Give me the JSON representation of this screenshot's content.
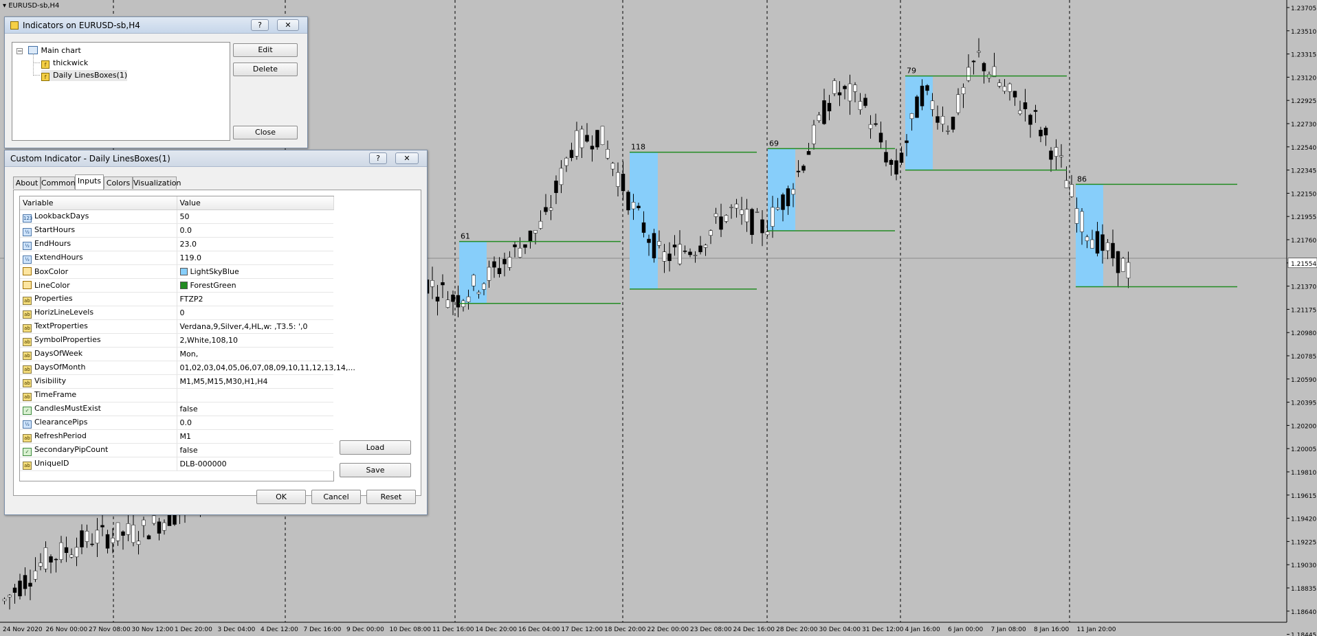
{
  "chart": {
    "title": "EURUSD-sb,H4",
    "price_ticks": [
      "1.23705",
      "1.23510",
      "1.23315",
      "1.23120",
      "1.22925",
      "1.22730",
      "1.22540",
      "1.22345",
      "1.22150",
      "1.21955",
      "1.21760",
      "1.21554",
      "1.21370",
      "1.21175",
      "1.20980",
      "1.20785",
      "1.20590",
      "1.20395",
      "1.20200",
      "1.20005",
      "1.19810",
      "1.19615",
      "1.19420",
      "1.19225",
      "1.19030",
      "1.18835",
      "1.18640",
      "1.18445"
    ],
    "current_price": "1.21554",
    "time_ticks": [
      "24 Nov 2020",
      "26 Nov 00:00",
      "27 Nov 08:00",
      "30 Nov 12:00",
      "1 Dec 20:00",
      "3 Dec 04:00",
      "4 Dec 12:00",
      "7 Dec 16:00",
      "9 Dec 00:00",
      "10 Dec 08:00",
      "11 Dec 16:00",
      "14 Dec 20:00",
      "16 Dec 04:00",
      "17 Dec 12:00",
      "18 Dec 20:00",
      "22 Dec 00:00",
      "23 Dec 08:00",
      "24 Dec 16:00",
      "28 Dec 20:00",
      "30 Dec 04:00",
      "31 Dec 12:00",
      "4 Jan 16:00",
      "6 Jan 00:00",
      "7 Jan 08:00",
      "8 Jan 16:00",
      "11 Jan 20:00"
    ],
    "box_labels": [
      "61",
      "118",
      "69",
      "79",
      "86"
    ],
    "colors": {
      "box": "#87CEFA",
      "line": "#228B22",
      "background": "#c0c0c0",
      "grid": "#000000"
    }
  },
  "indicators_window": {
    "title": "Indicators on EURUSD-sb,H4",
    "help_glyph": "?",
    "close_glyph": "✕",
    "tree": {
      "root": "Main chart",
      "children": [
        "thickwick",
        "Daily LinesBoxes(1)"
      ],
      "expander": "−"
    },
    "buttons": {
      "edit": "Edit",
      "delete": "Delete",
      "close": "Close"
    }
  },
  "custom_window": {
    "title": "Custom Indicator - Daily LinesBoxes(1)",
    "help_glyph": "?",
    "close_glyph": "✕",
    "tabs": [
      "About",
      "Common",
      "Inputs",
      "Colors",
      "Visualization"
    ],
    "active_tab": "Inputs",
    "columns": {
      "variable": "Variable",
      "value": "Value"
    },
    "params": [
      {
        "name": "LookbackDays",
        "value": "50",
        "type": "123"
      },
      {
        "name": "StartHours",
        "value": "0.0",
        "type": "½"
      },
      {
        "name": "EndHours",
        "value": "23.0",
        "type": "½"
      },
      {
        "name": "ExtendHours",
        "value": "119.0",
        "type": "½"
      },
      {
        "name": "BoxColor",
        "value": "LightSkyBlue",
        "type": "col",
        "swatch": "#87CEFA"
      },
      {
        "name": "LineColor",
        "value": "ForestGreen",
        "type": "col",
        "swatch": "#228B22"
      },
      {
        "name": "Properties",
        "value": "FTZP2",
        "type": "ab"
      },
      {
        "name": "HorizLineLevels",
        "value": "0",
        "type": "ab"
      },
      {
        "name": "TextProperties",
        "value": "Verdana,9,Silver,4,HL,w: ,T3.5: ',0",
        "type": "ab"
      },
      {
        "name": "SymbolProperties",
        "value": "2,White,108,10",
        "type": "ab"
      },
      {
        "name": "DaysOfWeek",
        "value": "Mon,",
        "type": "ab"
      },
      {
        "name": "DaysOfMonth",
        "value": "01,02,03,04,05,06,07,08,09,10,11,12,13,14,...",
        "type": "ab"
      },
      {
        "name": "Visibility",
        "value": "M1,M5,M15,M30,H1,H4",
        "type": "ab"
      },
      {
        "name": "TimeFrame",
        "value": "",
        "type": "ab"
      },
      {
        "name": "CandlesMustExist",
        "value": "false",
        "type": "bool"
      },
      {
        "name": "ClearancePips",
        "value": "0.0",
        "type": "½"
      },
      {
        "name": "RefreshPeriod",
        "value": "M1",
        "type": "ab"
      },
      {
        "name": "SecondaryPipCount",
        "value": "false",
        "type": "bool"
      },
      {
        "name": "UniqueID",
        "value": "DLB-000000",
        "type": "ab"
      }
    ],
    "buttons": {
      "load": "Load",
      "save": "Save",
      "ok": "OK",
      "cancel": "Cancel",
      "reset": "Reset"
    }
  }
}
